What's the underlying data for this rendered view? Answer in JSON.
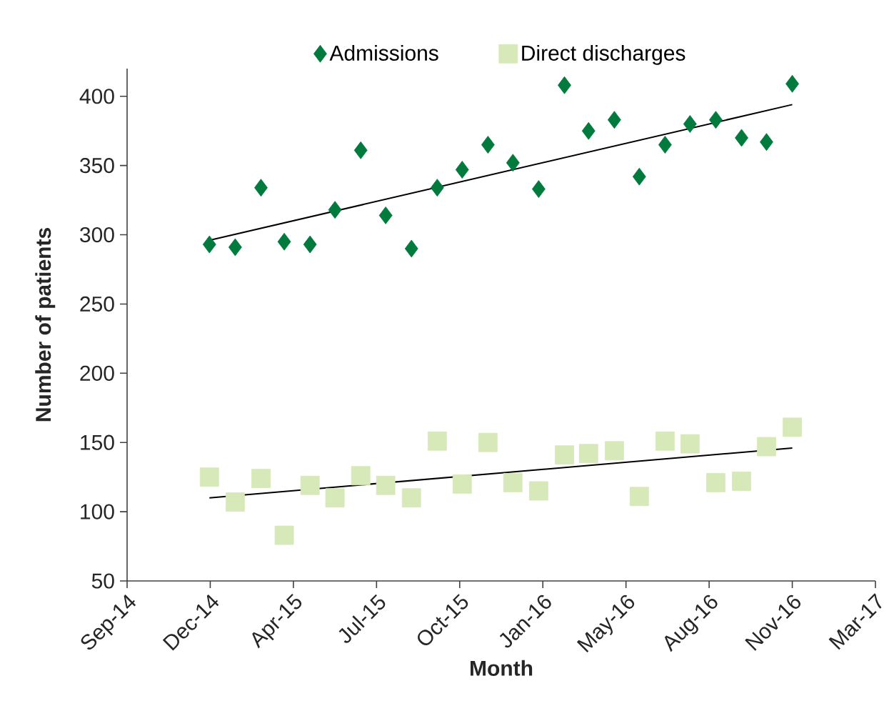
{
  "chart_data": {
    "type": "scatter",
    "xlabel": "Month",
    "ylabel": "Number of patients",
    "legend": "top",
    "xlim": [
      "2014-09-15",
      "2017-03-03"
    ],
    "xticks": [
      {
        "value": "2014-09-15",
        "label": "Sep-14"
      },
      {
        "value": "2014-12-24",
        "label": "Dec-14"
      },
      {
        "value": "2015-04-03",
        "label": "Apr-15"
      },
      {
        "value": "2015-07-12",
        "label": "Jul-15"
      },
      {
        "value": "2015-10-20",
        "label": "Oct-15"
      },
      {
        "value": "2016-01-28",
        "label": "Jan-16"
      },
      {
        "value": "2016-05-07",
        "label": "May-16"
      },
      {
        "value": "2016-08-15",
        "label": "Aug-16"
      },
      {
        "value": "2016-11-23",
        "label": "Nov-16"
      },
      {
        "value": "2017-03-03",
        "label": "Mar-17"
      }
    ],
    "ylim": [
      50,
      420
    ],
    "yticks": [
      50,
      100,
      150,
      200,
      250,
      300,
      350,
      400
    ],
    "series": [
      {
        "name": "Admissions",
        "marker": "diamond",
        "color": "#007a3d",
        "x": [
          "2014-12-23",
          "2015-01-23",
          "2015-02-23",
          "2015-03-23",
          "2015-04-23",
          "2015-05-23",
          "2015-06-23",
          "2015-07-23",
          "2015-08-23",
          "2015-09-23",
          "2015-10-23",
          "2015-11-23",
          "2015-12-23",
          "2016-01-23",
          "2016-02-23",
          "2016-03-23",
          "2016-04-23",
          "2016-05-23",
          "2016-06-23",
          "2016-07-23",
          "2016-08-23",
          "2016-09-23",
          "2016-10-23",
          "2016-11-23"
        ],
        "values": [
          293,
          291,
          334,
          295,
          293,
          318,
          361,
          314,
          290,
          334,
          347,
          365,
          352,
          333,
          408,
          375,
          383,
          342,
          365,
          380,
          383,
          370,
          367,
          409
        ]
      },
      {
        "name": "Direct discharges",
        "marker": "square",
        "color": "#d7e8b9",
        "x": [
          "2014-12-23",
          "2015-01-23",
          "2015-02-23",
          "2015-03-23",
          "2015-04-23",
          "2015-05-23",
          "2015-06-23",
          "2015-07-23",
          "2015-08-23",
          "2015-09-23",
          "2015-10-23",
          "2015-11-23",
          "2015-12-23",
          "2016-01-23",
          "2016-02-23",
          "2016-03-23",
          "2016-04-23",
          "2016-05-23",
          "2016-06-23",
          "2016-07-23",
          "2016-08-23",
          "2016-09-23",
          "2016-10-23",
          "2016-11-23"
        ],
        "values": [
          125,
          107,
          124,
          83,
          119,
          110,
          126,
          119,
          110,
          151,
          120,
          150,
          121,
          115,
          141,
          142,
          144,
          111,
          151,
          149,
          121,
          122,
          147,
          161
        ]
      },
      {
        "type": "line",
        "line_style": "solid",
        "color": "#000000",
        "x": [
          "2014-12-23",
          "2016-11-23"
        ],
        "values": [
          296,
          394
        ]
      },
      {
        "type": "line",
        "line_style": "solid",
        "color": "#000000",
        "x": [
          "2014-12-23",
          "2016-11-23"
        ],
        "values": [
          110,
          146
        ]
      }
    ]
  }
}
